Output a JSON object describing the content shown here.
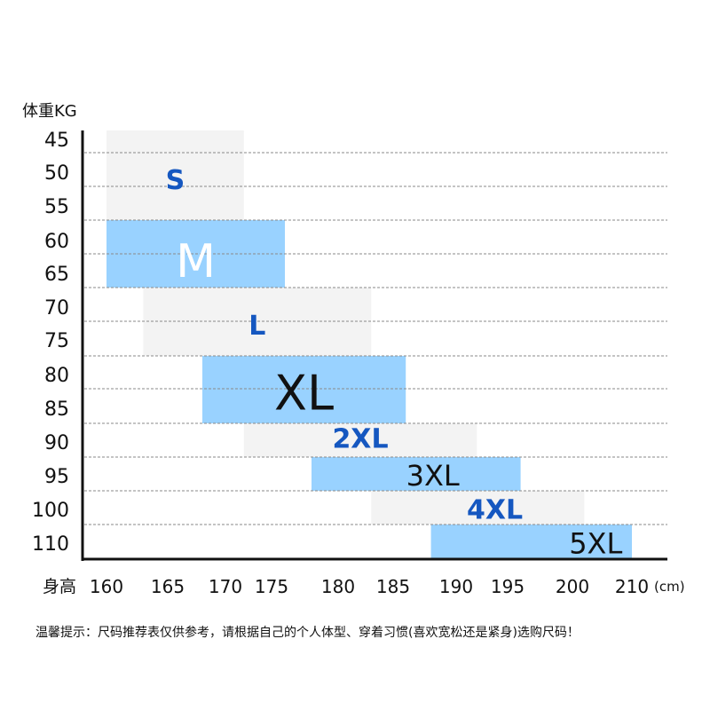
{
  "chart_data": {
    "type": "size-chart",
    "y_title": "体重KG",
    "x_title": "身高",
    "x_unit": "(cm)",
    "y_ticks": [
      "45",
      "50",
      "55",
      "60",
      "65",
      "70",
      "75",
      "80",
      "85",
      "90",
      "95",
      "100",
      "110"
    ],
    "x_ticks": [
      "160",
      "165",
      "170",
      "175",
      "180",
      "185",
      "190",
      "195",
      "200",
      "210"
    ],
    "sizes": [
      {
        "label": "S",
        "height": [
          160,
          172
        ],
        "weight": [
          45,
          55
        ]
      },
      {
        "label": "M",
        "height": [
          160,
          176
        ],
        "weight": [
          55,
          65
        ]
      },
      {
        "label": "L",
        "height": [
          163,
          183
        ],
        "weight": [
          65,
          75
        ]
      },
      {
        "label": "XL",
        "height": [
          168,
          186
        ],
        "weight": [
          75,
          85
        ]
      },
      {
        "label": "2XL",
        "height": [
          172,
          192
        ],
        "weight": [
          85,
          90
        ]
      },
      {
        "label": "3XL",
        "height": [
          178,
          196
        ],
        "weight": [
          90,
          95
        ]
      },
      {
        "label": "4XL",
        "height": [
          183,
          202
        ],
        "weight": [
          95,
          100
        ]
      },
      {
        "label": "5XL",
        "height": [
          188,
          210
        ],
        "weight": [
          100,
          110
        ]
      }
    ],
    "colors": {
      "light_gray": "#f3f3f3",
      "light_blue": "#99d2ff",
      "label_blue": "#1557c0",
      "label_white": "#ffffff",
      "label_black": "#111111"
    },
    "grid": "dashed horizontal"
  },
  "footer_note": "温馨提示：尺码推荐表仅供参考，请根据自己的个人体型、穿着习惯(喜欢宽松还是紧身)选购尺码！"
}
